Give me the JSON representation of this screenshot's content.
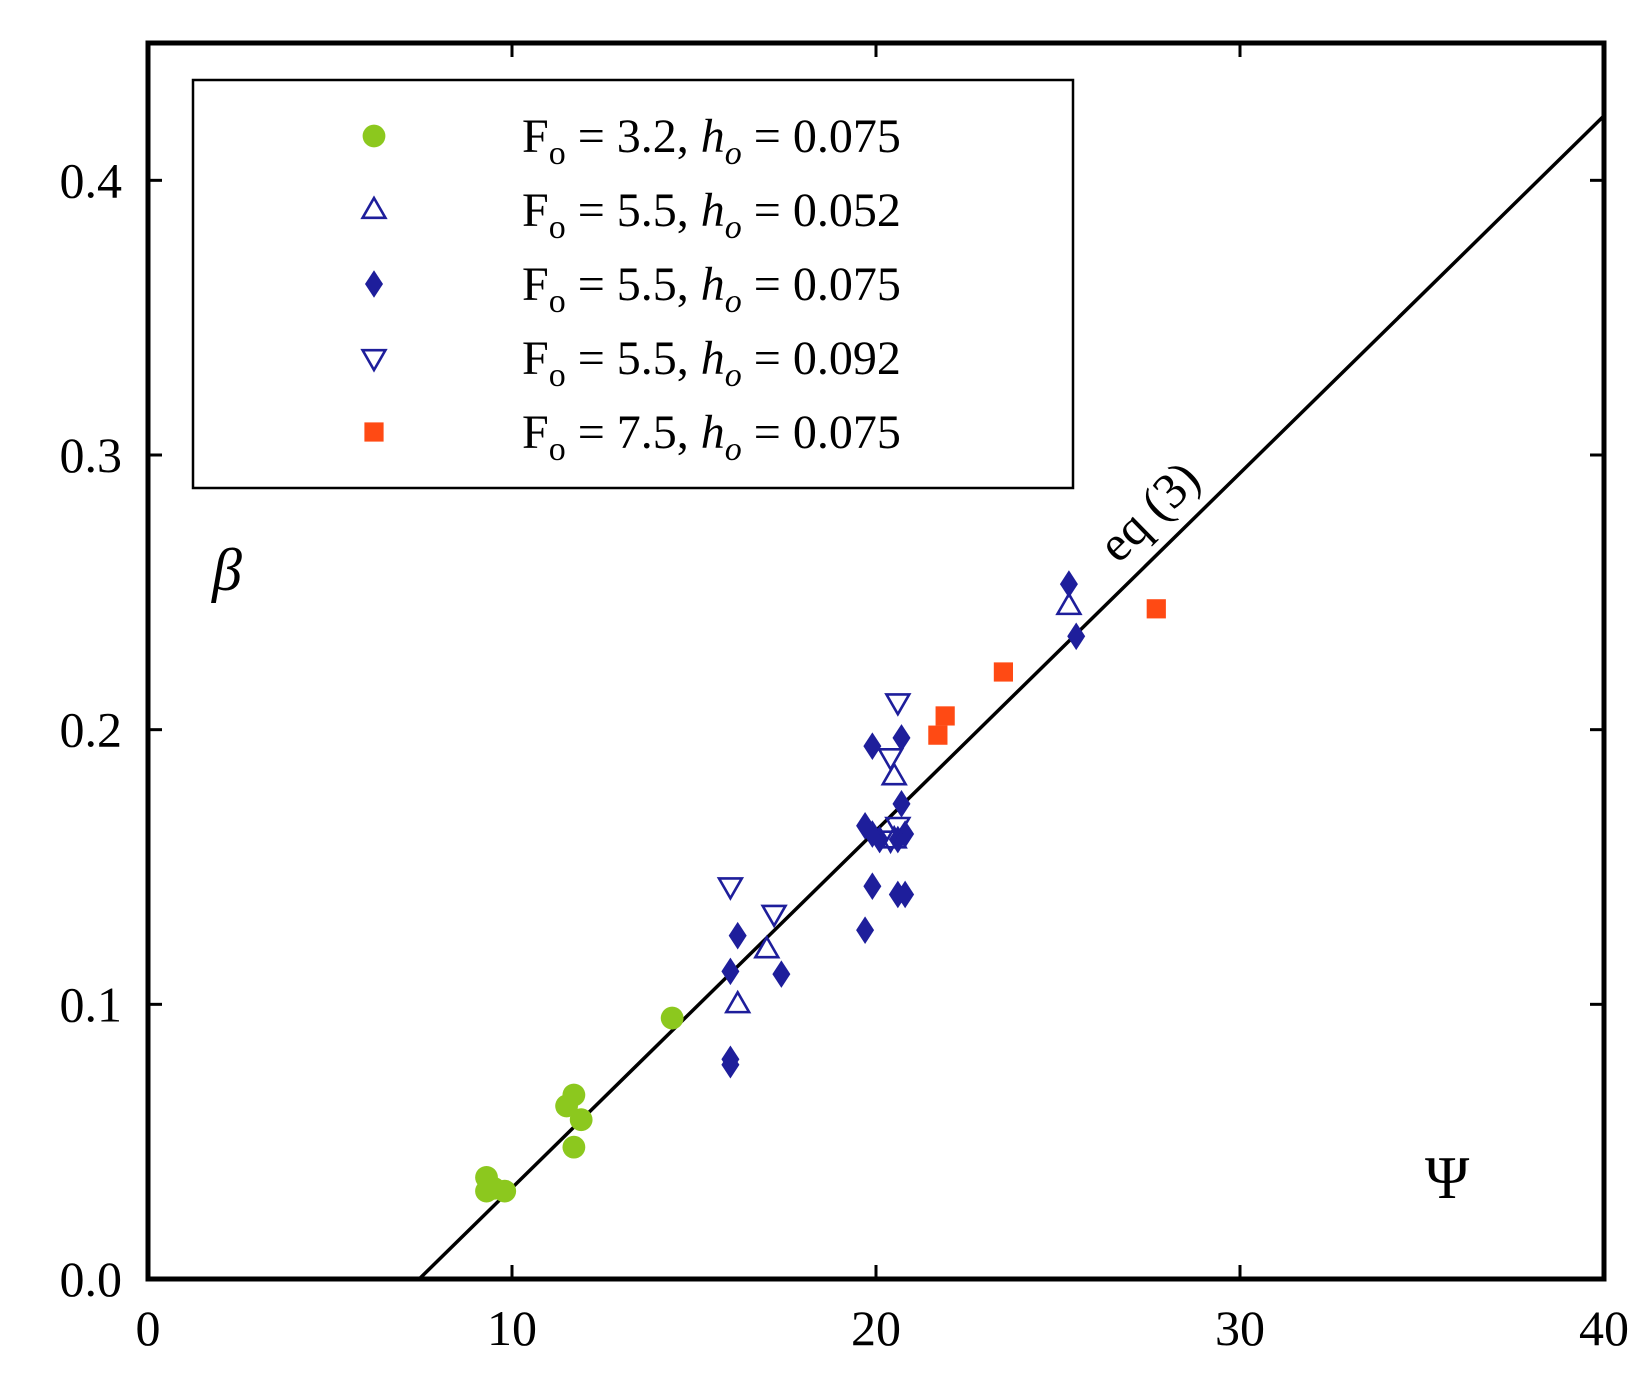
{
  "chart_data": {
    "type": "scatter",
    "title": "",
    "xlabel": "Ψ",
    "ylabel": "β",
    "xlim": [
      0,
      40
    ],
    "ylim": [
      0,
      0.45
    ],
    "xticks": [
      0,
      10,
      20,
      30,
      40
    ],
    "yticks": [
      0.0,
      0.1,
      0.2,
      0.3,
      0.4
    ],
    "xtick_labels": [
      "0",
      "10",
      "20",
      "30",
      "40"
    ],
    "ytick_labels": [
      "0.0",
      "0.1",
      "0.2",
      "0.3",
      "0.4"
    ],
    "grid": false,
    "legend_position": "top-left",
    "series": [
      {
        "name": "F_o = 3.2, h_o = 0.075",
        "label_F": "3.2",
        "label_h": "0.075",
        "marker": "circle",
        "color": "#8cc81e",
        "points": [
          [
            9.3,
            0.037
          ],
          [
            9.5,
            0.033
          ],
          [
            9.8,
            0.032
          ],
          [
            9.3,
            0.032
          ],
          [
            11.5,
            0.063
          ],
          [
            11.7,
            0.067
          ],
          [
            11.9,
            0.058
          ],
          [
            11.7,
            0.048
          ],
          [
            14.4,
            0.095
          ]
        ]
      },
      {
        "name": "F_o = 5.5, h_o = 0.052",
        "label_F": "5.5",
        "label_h": "0.052",
        "marker": "triangle-up-open",
        "color": "#1e1e9b",
        "points": [
          [
            16.2,
            0.1
          ],
          [
            17.0,
            0.12
          ],
          [
            20.5,
            0.183
          ],
          [
            20.5,
            0.16
          ],
          [
            25.3,
            0.245
          ]
        ]
      },
      {
        "name": "F_o = 5.5, h_o = 0.075",
        "label_F": "5.5",
        "label_h": "0.075",
        "marker": "diamond",
        "color": "#1e1e9b",
        "points": [
          [
            16.0,
            0.078
          ],
          [
            16.0,
            0.08
          ],
          [
            16.0,
            0.112
          ],
          [
            16.2,
            0.125
          ],
          [
            17.4,
            0.111
          ],
          [
            19.7,
            0.127
          ],
          [
            19.9,
            0.143
          ],
          [
            19.7,
            0.165
          ],
          [
            19.9,
            0.162
          ],
          [
            20.1,
            0.16
          ],
          [
            19.9,
            0.194
          ],
          [
            20.7,
            0.197
          ],
          [
            20.7,
            0.173
          ],
          [
            20.6,
            0.16
          ],
          [
            20.8,
            0.162
          ],
          [
            20.6,
            0.14
          ],
          [
            20.8,
            0.14
          ],
          [
            25.3,
            0.253
          ],
          [
            25.5,
            0.234
          ]
        ]
      },
      {
        "name": "F_o = 5.5, h_o = 0.092",
        "label_F": "5.5",
        "label_h": "0.092",
        "marker": "triangle-down-open",
        "color": "#1e1e9b",
        "points": [
          [
            16.0,
            0.143
          ],
          [
            17.2,
            0.133
          ],
          [
            20.4,
            0.19
          ],
          [
            20.6,
            0.21
          ],
          [
            20.6,
            0.165
          ],
          [
            20.4,
            0.16
          ]
        ]
      },
      {
        "name": "F_o = 7.5, h_o = 0.075",
        "label_F": "7.5",
        "label_h": "0.075",
        "marker": "square",
        "color": "#ff4a14",
        "points": [
          [
            21.7,
            0.198
          ],
          [
            21.9,
            0.205
          ],
          [
            23.5,
            0.221
          ],
          [
            27.7,
            0.244
          ]
        ]
      }
    ],
    "fit_line": {
      "label": "eq (3)",
      "x": [
        7.45,
        40
      ],
      "y": [
        0.0,
        0.4235
      ],
      "color": "#000000"
    }
  },
  "legend": {
    "F_symbol": "F",
    "F_sub": "o",
    "h_symbol": "h",
    "h_sub": "o",
    "eq_sign": "=",
    "separator": ","
  }
}
